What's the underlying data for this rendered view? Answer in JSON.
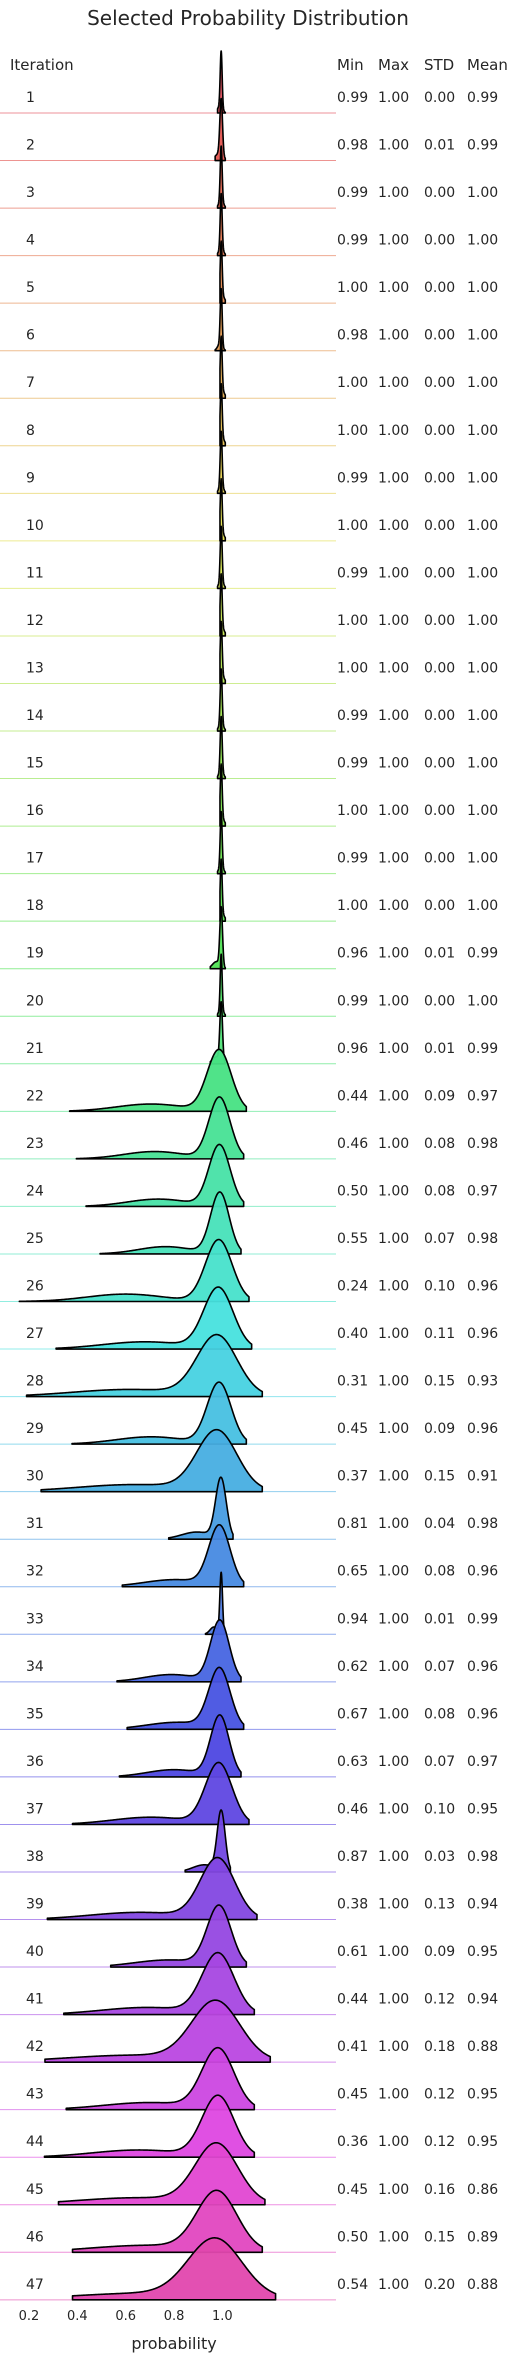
{
  "chart_data": {
    "type": "ridgeline",
    "title": "Selected Probability Distribution",
    "xlabel": "probability",
    "xlim": [
      0.08,
      1.47
    ],
    "x_ticks": [
      0.2,
      0.4,
      0.6,
      0.8,
      1.0
    ],
    "x_tick_labels": [
      "0.2",
      "0.4",
      "0.6",
      "0.8",
      "1.0"
    ],
    "grid": false,
    "columns": [
      "Iteration",
      "Min",
      "Max",
      "STD",
      "Mean"
    ],
    "rows": [
      {
        "iteration": "1",
        "min": "0.99",
        "max": "1.00",
        "std": "0.00",
        "mean": "0.99"
      },
      {
        "iteration": "2",
        "min": "0.98",
        "max": "1.00",
        "std": "0.01",
        "mean": "0.99"
      },
      {
        "iteration": "3",
        "min": "0.99",
        "max": "1.00",
        "std": "0.00",
        "mean": "1.00"
      },
      {
        "iteration": "4",
        "min": "0.99",
        "max": "1.00",
        "std": "0.00",
        "mean": "1.00"
      },
      {
        "iteration": "5",
        "min": "1.00",
        "max": "1.00",
        "std": "0.00",
        "mean": "1.00"
      },
      {
        "iteration": "6",
        "min": "0.98",
        "max": "1.00",
        "std": "0.00",
        "mean": "1.00"
      },
      {
        "iteration": "7",
        "min": "1.00",
        "max": "1.00",
        "std": "0.00",
        "mean": "1.00"
      },
      {
        "iteration": "8",
        "min": "1.00",
        "max": "1.00",
        "std": "0.00",
        "mean": "1.00"
      },
      {
        "iteration": "9",
        "min": "0.99",
        "max": "1.00",
        "std": "0.00",
        "mean": "1.00"
      },
      {
        "iteration": "10",
        "min": "1.00",
        "max": "1.00",
        "std": "0.00",
        "mean": "1.00"
      },
      {
        "iteration": "11",
        "min": "0.99",
        "max": "1.00",
        "std": "0.00",
        "mean": "1.00"
      },
      {
        "iteration": "12",
        "min": "1.00",
        "max": "1.00",
        "std": "0.00",
        "mean": "1.00"
      },
      {
        "iteration": "13",
        "min": "1.00",
        "max": "1.00",
        "std": "0.00",
        "mean": "1.00"
      },
      {
        "iteration": "14",
        "min": "0.99",
        "max": "1.00",
        "std": "0.00",
        "mean": "1.00"
      },
      {
        "iteration": "15",
        "min": "0.99",
        "max": "1.00",
        "std": "0.00",
        "mean": "1.00"
      },
      {
        "iteration": "16",
        "min": "1.00",
        "max": "1.00",
        "std": "0.00",
        "mean": "1.00"
      },
      {
        "iteration": "17",
        "min": "0.99",
        "max": "1.00",
        "std": "0.00",
        "mean": "1.00"
      },
      {
        "iteration": "18",
        "min": "1.00",
        "max": "1.00",
        "std": "0.00",
        "mean": "1.00"
      },
      {
        "iteration": "19",
        "min": "0.96",
        "max": "1.00",
        "std": "0.01",
        "mean": "0.99"
      },
      {
        "iteration": "20",
        "min": "0.99",
        "max": "1.00",
        "std": "0.00",
        "mean": "1.00"
      },
      {
        "iteration": "21",
        "min": "0.96",
        "max": "1.00",
        "std": "0.01",
        "mean": "0.99"
      },
      {
        "iteration": "22",
        "min": "0.44",
        "max": "1.00",
        "std": "0.09",
        "mean": "0.97"
      },
      {
        "iteration": "23",
        "min": "0.46",
        "max": "1.00",
        "std": "0.08",
        "mean": "0.98"
      },
      {
        "iteration": "24",
        "min": "0.50",
        "max": "1.00",
        "std": "0.08",
        "mean": "0.97"
      },
      {
        "iteration": "25",
        "min": "0.55",
        "max": "1.00",
        "std": "0.07",
        "mean": "0.98"
      },
      {
        "iteration": "26",
        "min": "0.24",
        "max": "1.00",
        "std": "0.10",
        "mean": "0.96"
      },
      {
        "iteration": "27",
        "min": "0.40",
        "max": "1.00",
        "std": "0.11",
        "mean": "0.96"
      },
      {
        "iteration": "28",
        "min": "0.31",
        "max": "1.00",
        "std": "0.15",
        "mean": "0.93"
      },
      {
        "iteration": "29",
        "min": "0.45",
        "max": "1.00",
        "std": "0.09",
        "mean": "0.96"
      },
      {
        "iteration": "30",
        "min": "0.37",
        "max": "1.00",
        "std": "0.15",
        "mean": "0.91"
      },
      {
        "iteration": "31",
        "min": "0.81",
        "max": "1.00",
        "std": "0.04",
        "mean": "0.98"
      },
      {
        "iteration": "32",
        "min": "0.65",
        "max": "1.00",
        "std": "0.08",
        "mean": "0.96"
      },
      {
        "iteration": "33",
        "min": "0.94",
        "max": "1.00",
        "std": "0.01",
        "mean": "0.99"
      },
      {
        "iteration": "34",
        "min": "0.62",
        "max": "1.00",
        "std": "0.07",
        "mean": "0.96"
      },
      {
        "iteration": "35",
        "min": "0.67",
        "max": "1.00",
        "std": "0.08",
        "mean": "0.96"
      },
      {
        "iteration": "36",
        "min": "0.63",
        "max": "1.00",
        "std": "0.07",
        "mean": "0.97"
      },
      {
        "iteration": "37",
        "min": "0.46",
        "max": "1.00",
        "std": "0.10",
        "mean": "0.95"
      },
      {
        "iteration": "38",
        "min": "0.87",
        "max": "1.00",
        "std": "0.03",
        "mean": "0.98"
      },
      {
        "iteration": "39",
        "min": "0.38",
        "max": "1.00",
        "std": "0.13",
        "mean": "0.94"
      },
      {
        "iteration": "40",
        "min": "0.61",
        "max": "1.00",
        "std": "0.09",
        "mean": "0.95"
      },
      {
        "iteration": "41",
        "min": "0.44",
        "max": "1.00",
        "std": "0.12",
        "mean": "0.94"
      },
      {
        "iteration": "42",
        "min": "0.41",
        "max": "1.00",
        "std": "0.18",
        "mean": "0.88"
      },
      {
        "iteration": "43",
        "min": "0.45",
        "max": "1.00",
        "std": "0.12",
        "mean": "0.95"
      },
      {
        "iteration": "44",
        "min": "0.36",
        "max": "1.00",
        "std": "0.12",
        "mean": "0.95"
      },
      {
        "iteration": "45",
        "min": "0.45",
        "max": "1.00",
        "std": "0.16",
        "mean": "0.86"
      },
      {
        "iteration": "46",
        "min": "0.50",
        "max": "1.00",
        "std": "0.15",
        "mean": "0.89"
      },
      {
        "iteration": "47",
        "min": "0.54",
        "max": "1.00",
        "std": "0.20",
        "mean": "0.88"
      }
    ]
  }
}
